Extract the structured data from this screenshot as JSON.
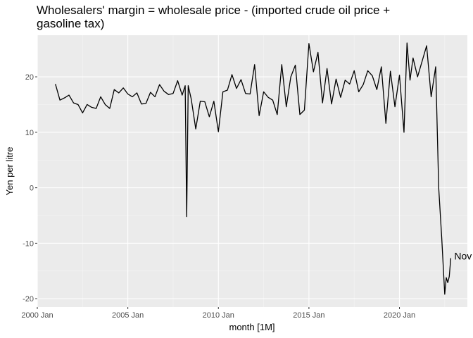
{
  "chart_data": {
    "type": "line",
    "title_lines": [
      "Wholesalers' margin = wholesale price - (imported crude oil price +",
      "gasoline tax)"
    ],
    "xlabel": "month [1M]",
    "ylabel": "Yen per litre",
    "x_ticks": [
      "2000 Jan",
      "2005 Jan",
      "2010 Jan",
      "2015 Jan",
      "2020 Jan"
    ],
    "y_ticks": [
      -20,
      -10,
      0,
      10,
      20
    ],
    "ylim": [
      -21.5,
      27.5
    ],
    "xlim": [
      "2000 Jan",
      "2023 Oct"
    ],
    "grid": true,
    "line_color": "#000000",
    "panel_color": "#ebebeb",
    "annotation": {
      "text": "Nov",
      "x": "2022 Nov",
      "y": -12.3
    },
    "series": [
      {
        "x": [
          "2001 Jan",
          "2001 Apr",
          "2001 Jul",
          "2001 Oct",
          "2002 Jan",
          "2002 Apr",
          "2002 Jul",
          "2002 Oct",
          "2003 Jan",
          "2003 Apr",
          "2003 Jul",
          "2003 Oct",
          "2004 Jan",
          "2004 Apr",
          "2004 Jul",
          "2004 Oct",
          "2005 Jan",
          "2005 Apr",
          "2005 Jul",
          "2005 Oct",
          "2006 Jan",
          "2006 Apr",
          "2006 Jul",
          "2006 Oct",
          "2007 Jan",
          "2007 Apr",
          "2007 Jul",
          "2007 Oct",
          "2008 Jan",
          "2008 Mar",
          "2008 Apr",
          "2008 May",
          "2008 Jul",
          "2008 Oct",
          "2009 Jan",
          "2009 Apr",
          "2009 Jul",
          "2009 Oct",
          "2010 Jan",
          "2010 Apr",
          "2010 Jul",
          "2010 Oct",
          "2011 Jan",
          "2011 Apr",
          "2011 Jul",
          "2011 Oct",
          "2012 Jan",
          "2012 Apr",
          "2012 Jul",
          "2012 Oct",
          "2013 Jan",
          "2013 Apr",
          "2013 Jul",
          "2013 Oct",
          "2014 Jan",
          "2014 Apr",
          "2014 Jul",
          "2014 Oct",
          "2015 Jan",
          "2015 Apr",
          "2015 Jul",
          "2015 Oct",
          "2016 Jan",
          "2016 Apr",
          "2016 Jul",
          "2016 Oct",
          "2017 Jan",
          "2017 Apr",
          "2017 Jul",
          "2017 Oct",
          "2018 Jan",
          "2018 Apr",
          "2018 Jul",
          "2018 Oct",
          "2019 Jan",
          "2019 Apr",
          "2019 Jul",
          "2019 Oct",
          "2020 Jan",
          "2020 Apr",
          "2020 Jun",
          "2020 Aug",
          "2020 Oct",
          "2021 Jan",
          "2021 Apr",
          "2021 Jul",
          "2021 Oct",
          "2022 Jan",
          "2022 Mar",
          "2022 May",
          "2022 Jul",
          "2022 Aug",
          "2022 Sep",
          "2022 Oct",
          "2022 Nov"
        ],
        "y": [
          18.7,
          15.8,
          16.2,
          16.7,
          15.3,
          15.0,
          13.5,
          15.0,
          14.5,
          14.3,
          16.4,
          15.0,
          14.3,
          17.7,
          17.1,
          18.0,
          16.9,
          16.4,
          17.1,
          15.1,
          15.2,
          17.2,
          16.4,
          18.6,
          17.4,
          16.8,
          17.0,
          19.3,
          16.7,
          18.4,
          -5.2,
          18.4,
          16.0,
          10.6,
          15.6,
          15.5,
          12.8,
          15.6,
          10.1,
          17.3,
          17.6,
          20.4,
          17.9,
          19.5,
          17.0,
          16.9,
          22.2,
          13.0,
          17.3,
          16.3,
          15.8,
          13.2,
          22.2,
          14.6,
          20.0,
          22.1,
          13.2,
          14.0,
          26.0,
          20.9,
          24.4,
          15.3,
          21.5,
          15.1,
          19.6,
          16.3,
          19.4,
          18.7,
          21.1,
          17.3,
          18.6,
          21.1,
          20.2,
          17.7,
          21.8,
          11.6,
          21.0,
          14.6,
          20.3,
          10.0,
          26.1,
          19.4,
          23.4,
          20.0,
          22.8,
          25.6,
          16.4,
          21.8,
          0.0,
          -9.0,
          -19.2,
          -16.2,
          -17.1,
          -16.0,
          -12.7
        ]
      }
    ]
  }
}
